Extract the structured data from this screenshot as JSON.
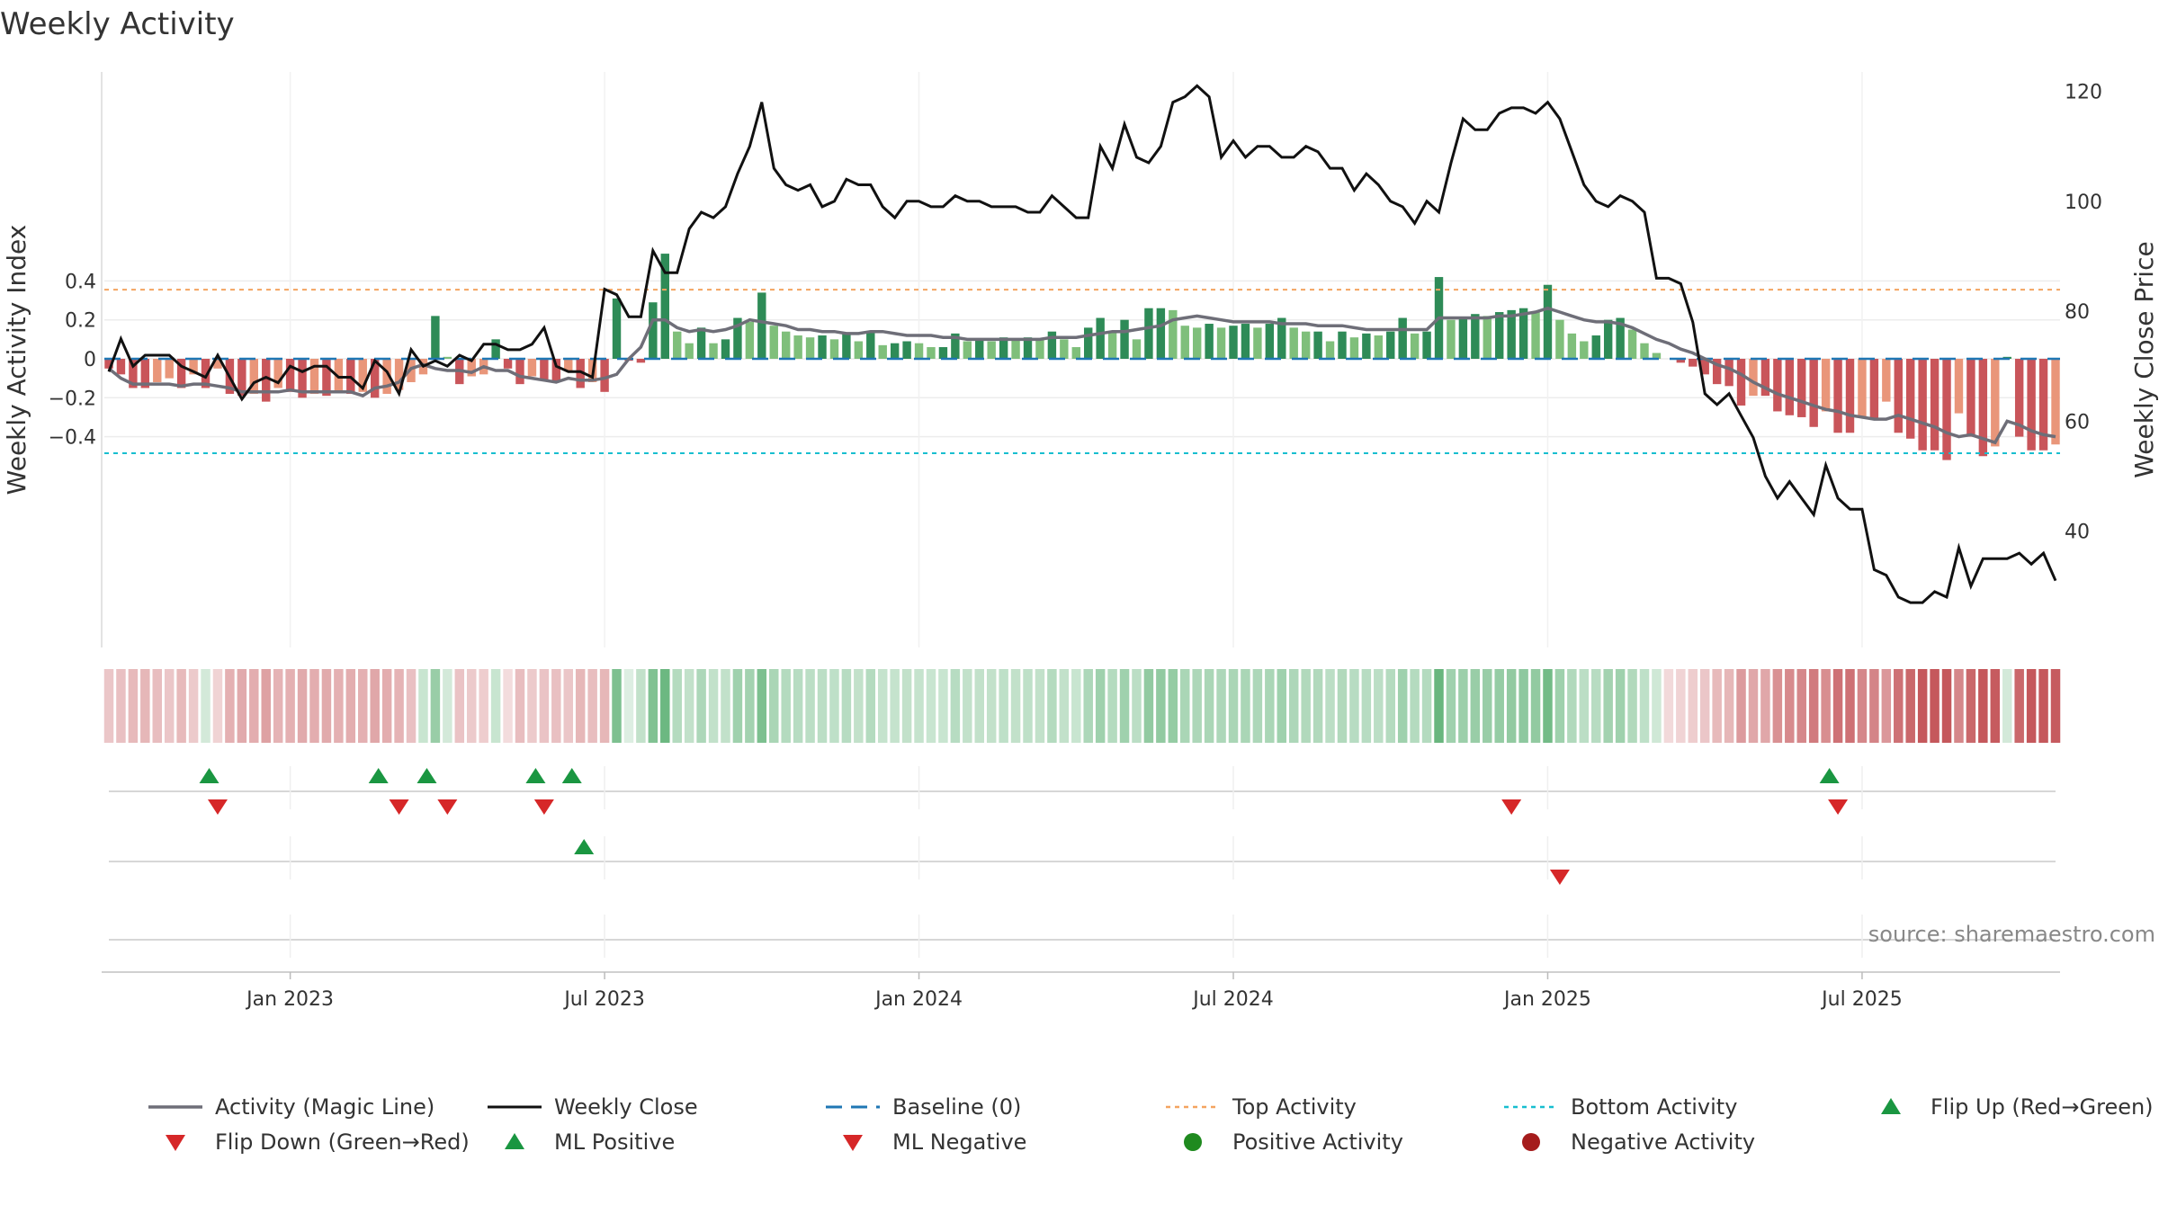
{
  "title": "Weekly Activity",
  "source": "source: sharemaestro.com",
  "colors": {
    "green_dark": "#2e8b57",
    "green_light": "#7fbf7b",
    "red_dark": "#c9555a",
    "red_light": "#e9967a",
    "magic_line": "#6e6e78",
    "close_line": "#111111",
    "baseline": "#1f77b4",
    "top_activity": "#f4a460",
    "bottom_activity": "#17becf",
    "marker_up": "#1a9641",
    "marker_down": "#d62728",
    "positive_dot": "#1f8a1f",
    "negative_dot": "#a51c1c"
  },
  "chart_data": {
    "type": "bar",
    "title": "Weekly Activity",
    "ylabel": "Weekly Activity Index",
    "y2label": "Weekly Close Price",
    "ylim": [
      -0.59,
      0.59
    ],
    "y2lim": [
      19.5,
      124.5
    ],
    "yticks": [
      {
        "v": 0.4,
        "label": "0.4"
      },
      {
        "v": 0.2,
        "label": "0.2"
      },
      {
        "v": 0,
        "label": "0"
      },
      {
        "v": -0.2,
        "label": "−0.2"
      },
      {
        "v": -0.4,
        "label": "−0.4"
      }
    ],
    "y2ticks": [
      {
        "v": 120,
        "label": "120"
      },
      {
        "v": 100,
        "label": "100"
      },
      {
        "v": 80,
        "label": "80"
      },
      {
        "v": 60,
        "label": "60"
      },
      {
        "v": 40,
        "label": "40"
      }
    ],
    "xticks": [
      {
        "week": 15,
        "label": "Jan 2023"
      },
      {
        "week": 41,
        "label": "Jul 2023"
      },
      {
        "week": 67,
        "label": "Jan 2024"
      },
      {
        "week": 93,
        "label": "Jul 2024"
      },
      {
        "week": 119,
        "label": "Jan 2025"
      },
      {
        "week": 145,
        "label": "Jul 2025"
      }
    ],
    "top_activity": 0.355,
    "bottom_activity": -0.485,
    "baseline": 0,
    "grid": true,
    "legend_position": "bottom",
    "activity": [
      -0.05,
      -0.08,
      -0.15,
      -0.15,
      -0.12,
      -0.1,
      -0.15,
      -0.08,
      -0.15,
      -0.05,
      -0.18,
      -0.19,
      -0.18,
      -0.22,
      -0.15,
      -0.17,
      -0.2,
      -0.18,
      -0.19,
      -0.17,
      -0.18,
      -0.17,
      -0.2,
      -0.18,
      -0.16,
      -0.12,
      -0.08,
      0.22,
      0.01,
      -0.13,
      -0.09,
      -0.08,
      0.1,
      -0.05,
      -0.13,
      -0.09,
      -0.11,
      -0.12,
      -0.06,
      -0.15,
      -0.12,
      -0.17,
      0.31,
      -0.01,
      -0.02,
      0.29,
      0.54,
      0.14,
      0.08,
      0.16,
      0.08,
      0.1,
      0.21,
      0.19,
      0.34,
      0.17,
      0.14,
      0.12,
      0.11,
      0.12,
      0.1,
      0.13,
      0.09,
      0.14,
      0.07,
      0.08,
      0.09,
      0.08,
      0.06,
      0.06,
      0.13,
      0.09,
      0.1,
      0.09,
      0.11,
      0.1,
      0.11,
      0.1,
      0.14,
      0.1,
      0.06,
      0.16,
      0.21,
      0.14,
      0.2,
      0.1,
      0.26,
      0.26,
      0.25,
      0.17,
      0.16,
      0.18,
      0.16,
      0.17,
      0.18,
      0.16,
      0.18,
      0.21,
      0.16,
      0.14,
      0.14,
      0.09,
      0.14,
      0.11,
      0.13,
      0.12,
      0.14,
      0.21,
      0.13,
      0.14,
      0.42,
      0.2,
      0.21,
      0.23,
      0.22,
      0.24,
      0.25,
      0.26,
      0.24,
      0.38,
      0.2,
      0.13,
      0.09,
      0.12,
      0.2,
      0.21,
      0.15,
      0.08,
      0.03,
      0,
      -0.02,
      -0.04,
      -0.08,
      -0.13,
      -0.14,
      -0.24,
      -0.19,
      -0.19,
      -0.27,
      -0.29,
      -0.3,
      -0.35,
      -0.27,
      -0.38,
      -0.38,
      -0.3,
      -0.31,
      -0.22,
      -0.38,
      -0.41,
      -0.47,
      -0.47,
      -0.52,
      -0.28,
      -0.4,
      -0.5,
      -0.45,
      0.01,
      -0.4,
      -0.47,
      -0.47,
      -0.44
    ],
    "magic_line": [
      -0.05,
      -0.1,
      -0.13,
      -0.13,
      -0.13,
      -0.13,
      -0.14,
      -0.13,
      -0.13,
      -0.14,
      -0.15,
      -0.17,
      -0.17,
      -0.17,
      -0.17,
      -0.16,
      -0.17,
      -0.17,
      -0.17,
      -0.17,
      -0.17,
      -0.19,
      -0.15,
      -0.14,
      -0.12,
      -0.05,
      -0.03,
      -0.05,
      -0.06,
      -0.06,
      -0.07,
      -0.04,
      -0.06,
      -0.06,
      -0.09,
      -0.1,
      -0.11,
      -0.12,
      -0.1,
      -0.11,
      -0.11,
      -0.1,
      -0.08,
      0,
      0.06,
      0.2,
      0.2,
      0.16,
      0.14,
      0.15,
      0.14,
      0.15,
      0.17,
      0.2,
      0.19,
      0.18,
      0.17,
      0.15,
      0.15,
      0.14,
      0.14,
      0.13,
      0.13,
      0.14,
      0.14,
      0.13,
      0.12,
      0.12,
      0.12,
      0.11,
      0.11,
      0.1,
      0.1,
      0.1,
      0.1,
      0.1,
      0.1,
      0.1,
      0.11,
      0.11,
      0.11,
      0.12,
      0.13,
      0.14,
      0.14,
      0.15,
      0.16,
      0.17,
      0.2,
      0.21,
      0.22,
      0.21,
      0.2,
      0.19,
      0.19,
      0.19,
      0.19,
      0.18,
      0.18,
      0.18,
      0.17,
      0.17,
      0.17,
      0.16,
      0.15,
      0.15,
      0.15,
      0.15,
      0.15,
      0.15,
      0.21,
      0.21,
      0.21,
      0.21,
      0.21,
      0.22,
      0.22,
      0.23,
      0.24,
      0.26,
      0.24,
      0.22,
      0.2,
      0.19,
      0.19,
      0.18,
      0.16,
      0.13,
      0.1,
      0.08,
      0.05,
      0.03,
      0,
      -0.03,
      -0.05,
      -0.08,
      -0.12,
      -0.15,
      -0.18,
      -0.2,
      -0.22,
      -0.24,
      -0.26,
      -0.27,
      -0.29,
      -0.3,
      -0.31,
      -0.31,
      -0.29,
      -0.31,
      -0.33,
      -0.35,
      -0.38,
      -0.4,
      -0.39,
      -0.41,
      -0.43,
      -0.32,
      -0.34,
      -0.37,
      -0.39,
      -0.4
    ],
    "weekly_close": [
      69,
      75,
      70,
      72,
      72,
      72,
      70,
      69,
      68,
      72,
      68,
      64,
      67,
      68,
      67,
      70,
      69,
      70,
      70,
      68,
      68,
      66,
      71,
      69,
      65,
      73,
      70,
      71,
      70,
      72,
      71,
      74,
      74,
      73,
      73,
      74,
      77,
      70,
      69,
      69,
      68,
      84,
      83,
      79,
      79,
      91,
      87,
      87,
      95,
      98,
      97,
      99,
      105,
      110,
      118,
      106,
      103,
      102,
      103,
      99,
      100,
      104,
      103,
      103,
      99,
      97,
      100,
      100,
      99,
      99,
      101,
      100,
      100,
      99,
      99,
      99,
      98,
      98,
      101,
      99,
      97,
      97,
      110,
      106,
      114,
      108,
      107,
      110,
      118,
      119,
      121,
      119,
      108,
      111,
      108,
      110,
      110,
      108,
      108,
      110,
      109,
      106,
      106,
      102,
      105,
      103,
      100,
      99,
      96,
      100,
      98,
      107,
      115,
      113,
      113,
      116,
      117,
      117,
      116,
      118,
      115,
      109,
      103,
      100,
      99,
      101,
      100,
      98,
      86,
      86,
      85,
      78,
      65,
      63,
      65,
      61,
      57,
      50,
      46,
      49,
      46,
      43,
      52,
      46,
      44,
      44,
      33,
      32,
      28,
      27,
      27,
      29,
      28,
      37,
      30,
      35,
      35,
      35,
      36,
      34,
      36,
      31
    ],
    "activity_band": [
      -0.1,
      -0.12,
      -0.14,
      -0.15,
      -0.13,
      -0.1,
      -0.14,
      -0.09,
      0.05,
      -0.06,
      -0.17,
      -0.19,
      -0.18,
      -0.22,
      -0.16,
      -0.17,
      -0.19,
      -0.18,
      -0.19,
      -0.17,
      -0.18,
      -0.17,
      -0.2,
      -0.18,
      -0.16,
      -0.12,
      0.08,
      0.22,
      0.05,
      -0.11,
      -0.09,
      -0.08,
      0.08,
      -0.03,
      -0.13,
      -0.09,
      -0.11,
      -0.12,
      -0.1,
      -0.15,
      -0.13,
      -0.15,
      0.3,
      0.02,
      0.1,
      0.29,
      0.35,
      0.14,
      0.1,
      0.16,
      0.1,
      0.1,
      0.2,
      0.19,
      0.3,
      0.17,
      0.14,
      0.13,
      0.12,
      0.12,
      0.11,
      0.13,
      0.1,
      0.14,
      0.09,
      0.09,
      0.1,
      0.09,
      0.08,
      0.08,
      0.13,
      0.1,
      0.1,
      0.1,
      0.11,
      0.1,
      0.11,
      0.1,
      0.14,
      0.1,
      0.08,
      0.16,
      0.2,
      0.14,
      0.2,
      0.12,
      0.24,
      0.24,
      0.23,
      0.17,
      0.16,
      0.17,
      0.16,
      0.17,
      0.17,
      0.16,
      0.17,
      0.2,
      0.16,
      0.15,
      0.15,
      0.12,
      0.15,
      0.13,
      0.13,
      0.12,
      0.14,
      0.2,
      0.14,
      0.14,
      0.36,
      0.2,
      0.21,
      0.22,
      0.22,
      0.23,
      0.24,
      0.25,
      0.24,
      0.33,
      0.2,
      0.15,
      0.12,
      0.13,
      0.19,
      0.2,
      0.15,
      0.11,
      0.06,
      -0.04,
      -0.06,
      -0.08,
      -0.1,
      -0.14,
      -0.15,
      -0.24,
      -0.2,
      -0.2,
      -0.27,
      -0.29,
      -0.3,
      -0.34,
      -0.28,
      -0.37,
      -0.37,
      -0.3,
      -0.31,
      -0.25,
      -0.37,
      -0.4,
      -0.45,
      -0.45,
      -0.5,
      -0.3,
      -0.4,
      -0.48,
      -0.44,
      0.05,
      -0.4,
      -0.46,
      -0.46,
      -0.44
    ],
    "flip_up": [
      8,
      22,
      26,
      35,
      38,
      142
    ],
    "flip_down": [
      9,
      24,
      28,
      36,
      116,
      143
    ],
    "ml_positive": [
      39
    ],
    "ml_negative": [
      120
    ],
    "legend": [
      {
        "key": "magic",
        "label": "Activity (Magic Line)"
      },
      {
        "key": "close",
        "label": "Weekly Close"
      },
      {
        "key": "baseline",
        "label": "Baseline (0)"
      },
      {
        "key": "top",
        "label": "Top Activity"
      },
      {
        "key": "bottom",
        "label": "Bottom Activity"
      },
      {
        "key": "flip_up",
        "label": "Flip Up (Red→Green)"
      },
      {
        "key": "flip_down",
        "label": "Flip Down (Green→Red)"
      },
      {
        "key": "ml_pos",
        "label": "ML Positive"
      },
      {
        "key": "ml_neg",
        "label": "ML Negative"
      },
      {
        "key": "pos_act",
        "label": "Positive Activity"
      },
      {
        "key": "neg_act",
        "label": "Negative Activity"
      }
    ]
  }
}
